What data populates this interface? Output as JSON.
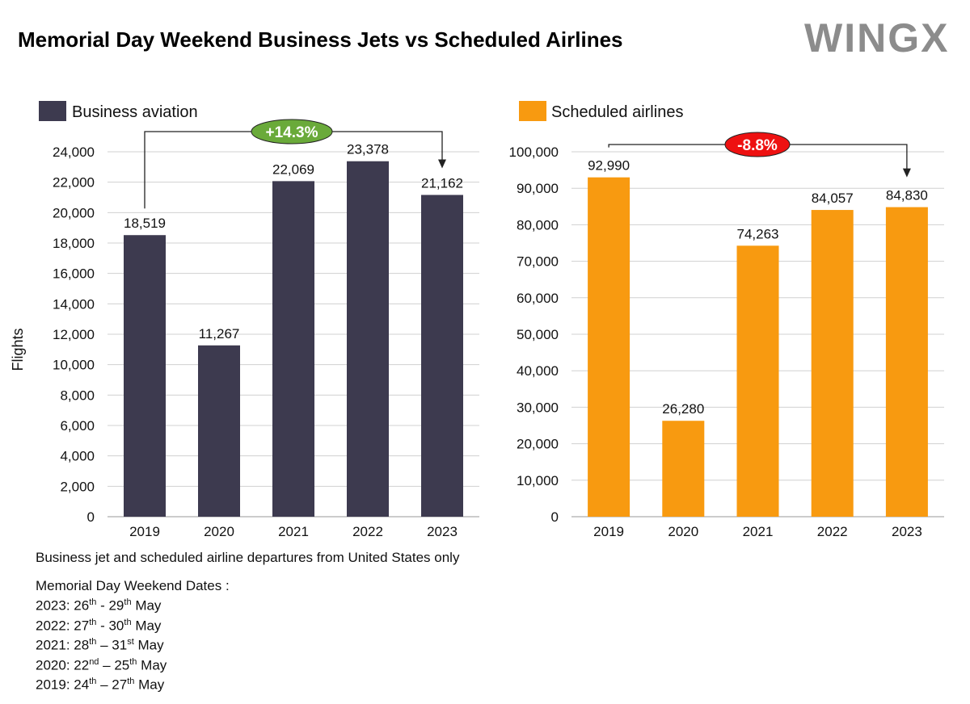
{
  "title": "Memorial Day Weekend Business Jets vs Scheduled Airlines",
  "logo": "WINGX",
  "colors": {
    "business": "#3d3a4f",
    "airlines": "#f89a10",
    "positive": "#6aaa3a",
    "negative": "#ee1111"
  },
  "chart_data": [
    {
      "type": "bar",
      "legend": "Business aviation",
      "ylabel": "Flights",
      "categories": [
        "2019",
        "2020",
        "2021",
        "2022",
        "2023"
      ],
      "values": [
        18519,
        11267,
        22069,
        23378,
        21162
      ],
      "value_labels": [
        "18,519",
        "11,267",
        "22,069",
        "23,378",
        "21,162"
      ],
      "ylim": [
        0,
        24000
      ],
      "yticks": [
        0,
        2000,
        4000,
        6000,
        8000,
        10000,
        12000,
        14000,
        16000,
        18000,
        20000,
        22000,
        24000
      ],
      "ytick_labels": [
        "0",
        "2,000",
        "4,000",
        "6,000",
        "8,000",
        "10,000",
        "12,000",
        "14,000",
        "16,000",
        "18,000",
        "20,000",
        "22,000",
        "24,000"
      ],
      "change_label": "+14.3%",
      "grid": true
    },
    {
      "type": "bar",
      "legend": "Scheduled airlines",
      "categories": [
        "2019",
        "2020",
        "2021",
        "2022",
        "2023"
      ],
      "values": [
        92990,
        26280,
        74263,
        84057,
        84830
      ],
      "value_labels": [
        "92,990",
        "26,280",
        "74,263",
        "84,057",
        "84,830"
      ],
      "ylim": [
        0,
        100000
      ],
      "yticks": [
        0,
        10000,
        20000,
        30000,
        40000,
        50000,
        60000,
        70000,
        80000,
        90000,
        100000
      ],
      "ytick_labels": [
        "0",
        "10,000",
        "20,000",
        "30,000",
        "40,000",
        "50,000",
        "60,000",
        "70,000",
        "80,000",
        "90,000",
        "100,000"
      ],
      "change_label": "-8.8%",
      "grid": true
    }
  ],
  "notes": {
    "source": "Business jet and scheduled airline departures from United States only",
    "dates_heading": "Memorial Day Weekend Dates :",
    "dates": [
      {
        "y": "2023: 26",
        "s1": "th",
        "m": " - 29",
        "s2": "th",
        "e": " May"
      },
      {
        "y": "2022: 27",
        "s1": "th",
        "m": " - 30",
        "s2": "th",
        "e": " May"
      },
      {
        "y": "2021: 28",
        "s1": "th",
        "m": " – 31",
        "s2": "st",
        "e": " May"
      },
      {
        "y": "2020: 22",
        "s1": "nd",
        "m": " – 25",
        "s2": "th",
        "e": " May"
      },
      {
        "y": "2019: 24",
        "s1": "th",
        "m": " – 27",
        "s2": "th",
        "e": " May"
      }
    ]
  }
}
